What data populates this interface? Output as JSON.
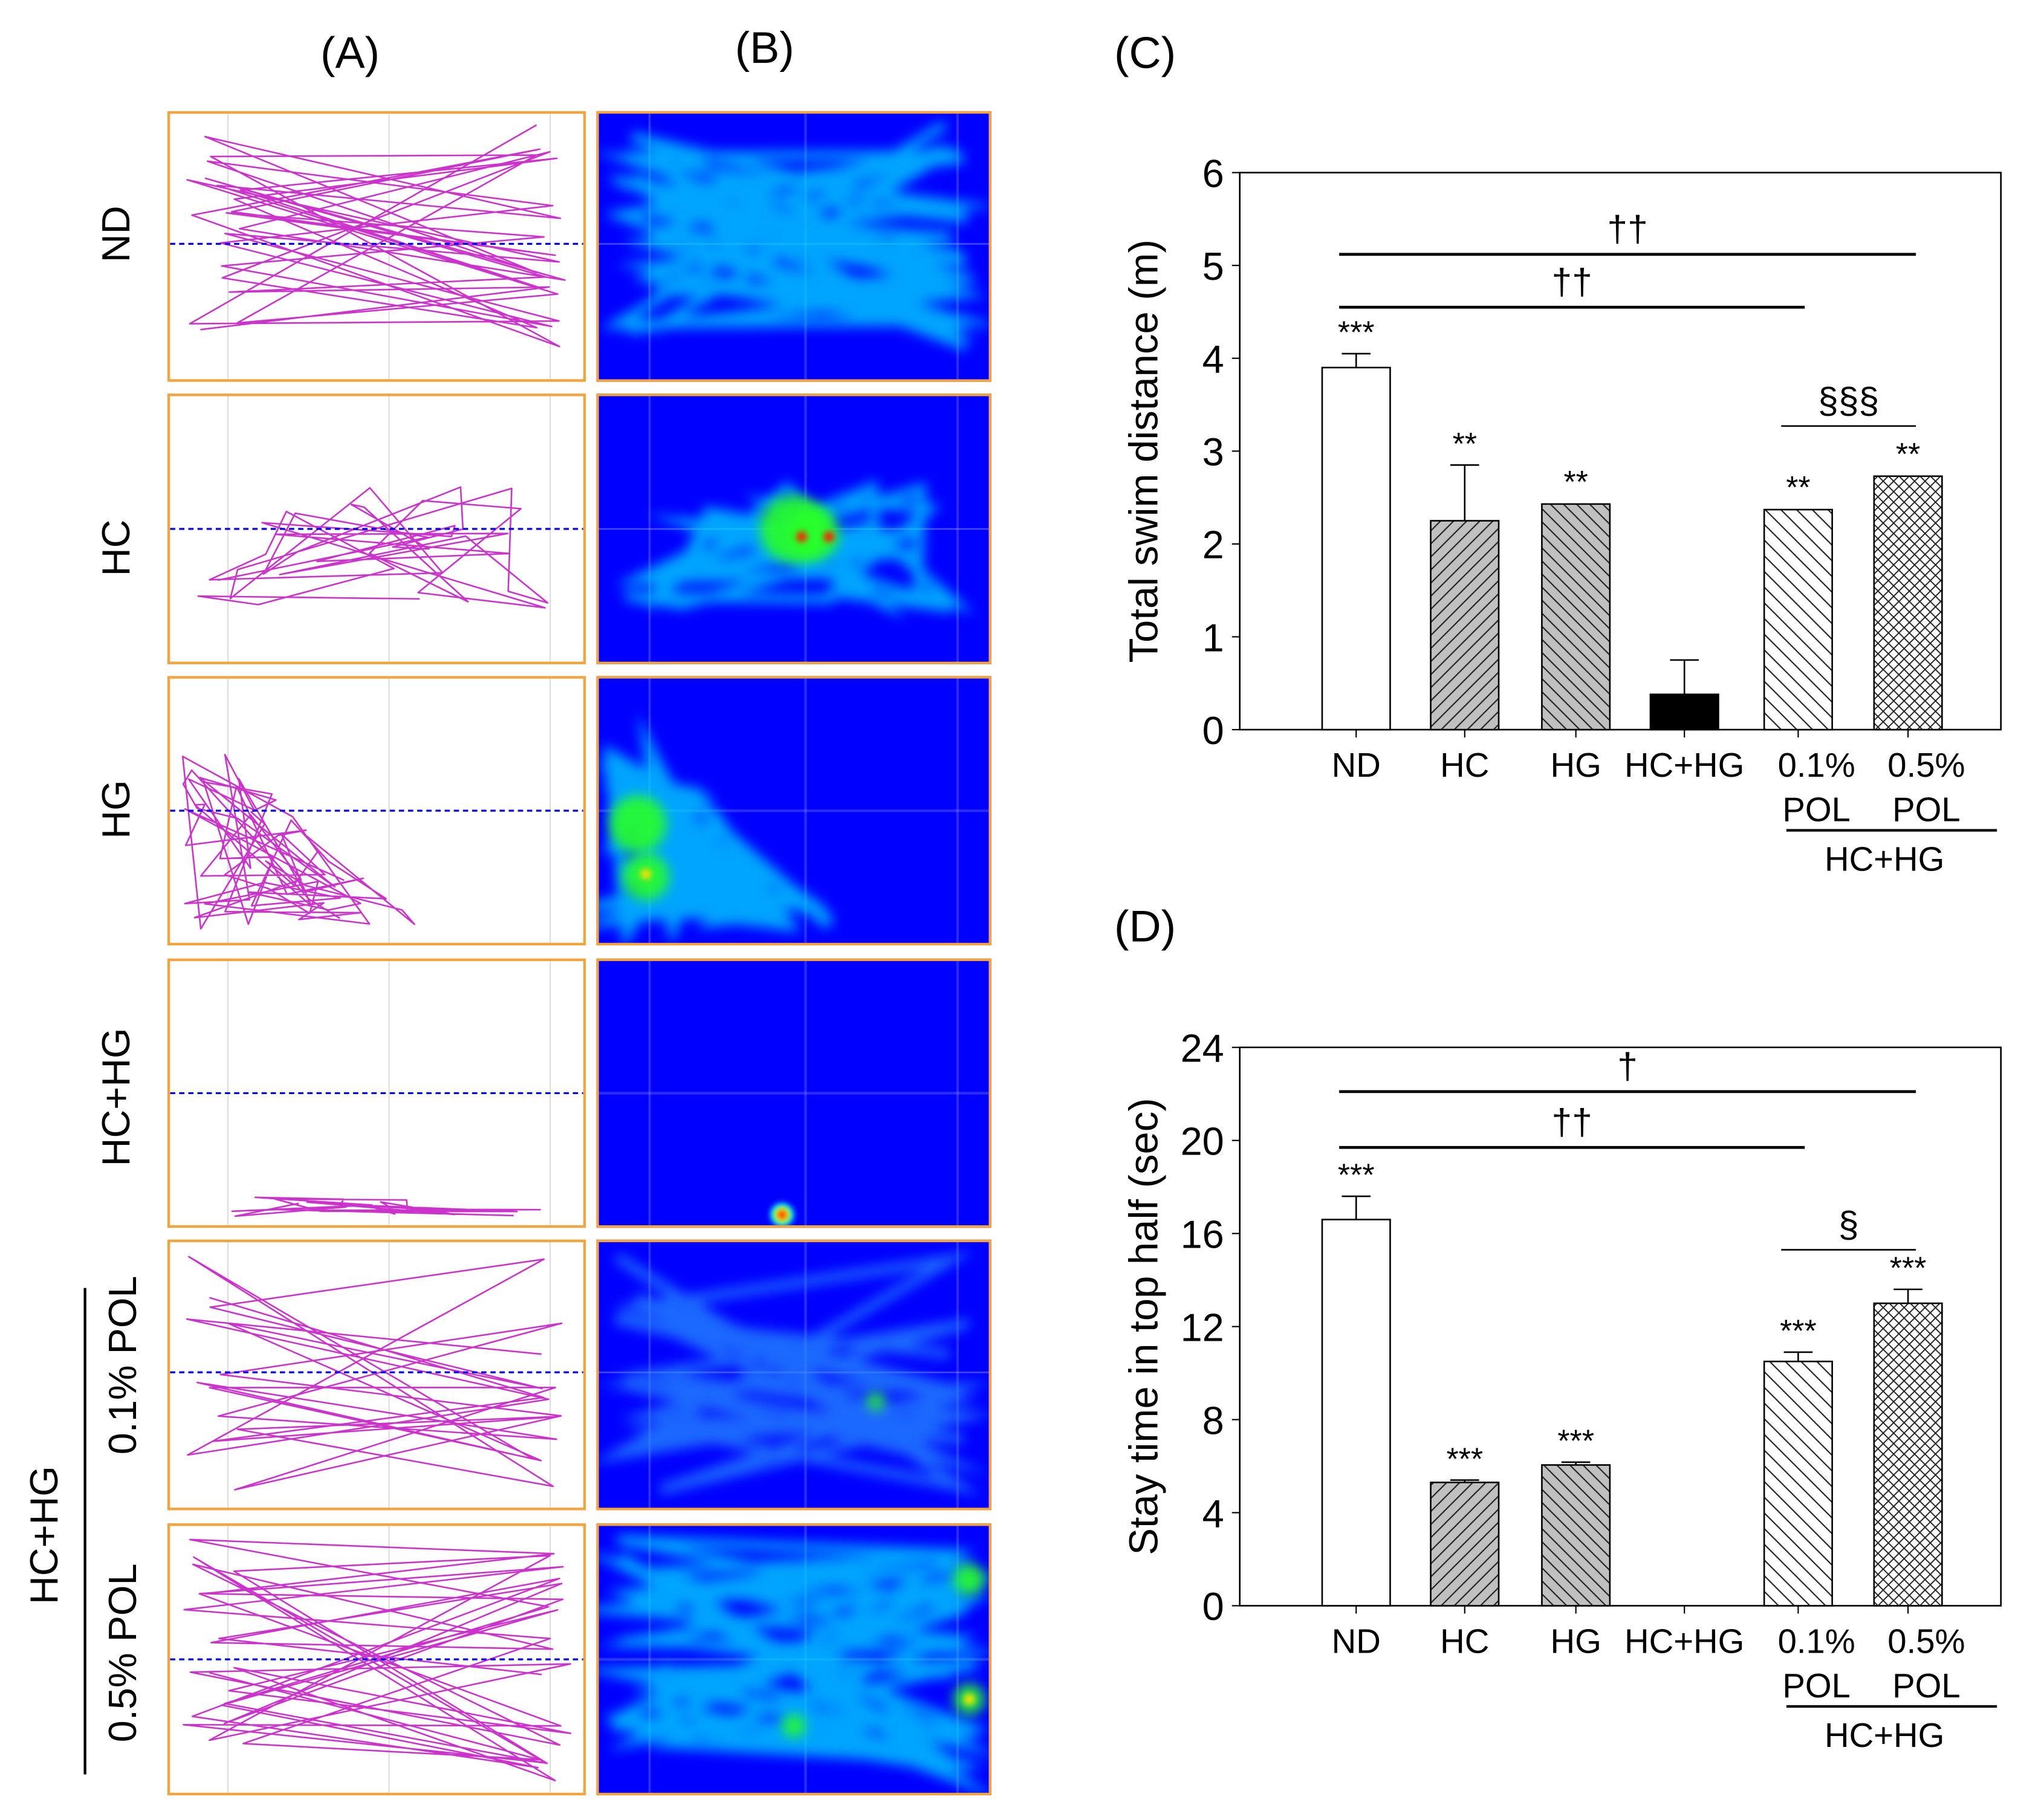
{
  "panels": {
    "a": "(A)",
    "b": "(B)",
    "c": "(C)",
    "d": "(D)"
  },
  "rows": [
    "ND",
    "HC",
    "HG",
    "HC+HG",
    "0.1% POL",
    "0.5% POL"
  ],
  "row_group_label": "HC+HG",
  "colors": {
    "track_border": "#f5a33c",
    "trajectory": "#cc33cc",
    "midline": "#0000ff",
    "heat_bg": "#0000ff"
  },
  "chart_data": [
    {
      "type": "bar",
      "panel": "(C)",
      "ylabel": "Total swim distance (m)",
      "ylim": [
        0,
        6
      ],
      "yticks": [
        "0",
        "1",
        "2",
        "3",
        "4",
        "5",
        "6"
      ],
      "categories": [
        "ND",
        "HC",
        "HG",
        "HC+HG",
        "0.1%\nPOL",
        "0.5%\nPOL"
      ],
      "group_label": "HC+HG",
      "values": [
        3.9,
        2.25,
        2.43,
        0.38,
        2.37,
        2.73
      ],
      "errors": [
        0.15,
        0.6,
        0.01,
        0.37,
        0.01,
        0.01
      ],
      "annotations": [
        "***",
        "**",
        "**",
        "",
        "**",
        "**"
      ],
      "brackets": [
        {
          "from": 0,
          "to": 5,
          "y": 5.12,
          "label": "††"
        },
        {
          "from": 0,
          "to": 4,
          "y": 4.55,
          "label": "††"
        },
        {
          "from": 4,
          "to": 5,
          "y": 3.27,
          "label": "§§§"
        }
      ]
    },
    {
      "type": "bar",
      "panel": "(D)",
      "ylabel": "Stay time in top half (sec)",
      "ylim": [
        0,
        24
      ],
      "yticks": [
        "0",
        "4",
        "8",
        "12",
        "16",
        "20",
        "24"
      ],
      "categories": [
        "ND",
        "HC",
        "HG",
        "HC+HG",
        "0.1%\nPOL",
        "0.5%\nPOL"
      ],
      "group_label": "HC+HG",
      "values": [
        16.6,
        5.3,
        6.05,
        0,
        10.5,
        13.0
      ],
      "errors": [
        1.0,
        0.1,
        0.12,
        0,
        0.4,
        0.6
      ],
      "annotations": [
        "***",
        "***",
        "***",
        "",
        "***",
        "***"
      ],
      "brackets": [
        {
          "from": 0,
          "to": 5,
          "y": 22.1,
          "label": "†"
        },
        {
          "from": 0,
          "to": 4,
          "y": 19.7,
          "label": "††"
        },
        {
          "from": 4,
          "to": 5,
          "y": 15.3,
          "label": "§"
        }
      ]
    }
  ]
}
